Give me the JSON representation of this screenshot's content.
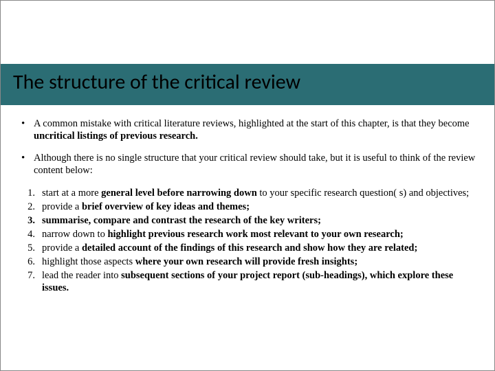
{
  "colors": {
    "band": "#2b6d74",
    "text": "#000000",
    "background": "#ffffff",
    "border": "#888888"
  },
  "title": "The structure of the critical review",
  "bullets": {
    "b1_pre": "A common mistake with critical literature reviews, highlighted at the start of this chapter, is that they become ",
    "b1_bold": "uncritical listings of previous research.",
    "b2": "Although there is no single structure that your critical review should take, but it is useful to think of the review content below:"
  },
  "numbered": {
    "n1_pre": "start at a more ",
    "n1_bold": "general level before narrowing down",
    "n1_post": " to your specific research question( s) and objectives;",
    "n2_pre": "provide a ",
    "n2_bold": "brief overview of key ideas and themes;",
    "n3_bold": "summarise, compare and contrast the research of the key writers;",
    "n4_pre": "narrow down to ",
    "n4_bold": "highlight previous research work most relevant to your own research;",
    "n5_pre": "provide a ",
    "n5_bold": "detailed account of the findings of this research and show how they are related;",
    "n6_pre": "highlight those aspects ",
    "n6_bold": "where your own research will provide fresh insights;",
    "n7_pre": "lead the reader into ",
    "n7_bold": "subsequent sections of your project report (sub-headings), which explore these issues."
  },
  "numbers": {
    "n1": "1.",
    "n2": "2.",
    "n3": "3.",
    "n4": "4.",
    "n5": "5.",
    "n6": "6.",
    "n7": "7."
  }
}
